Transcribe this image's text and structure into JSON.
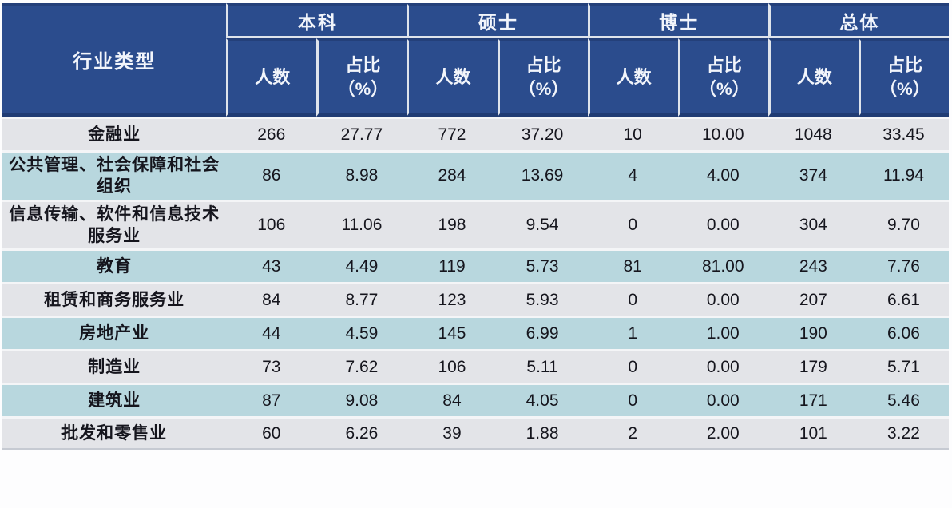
{
  "colors": {
    "header_bg": "#2b4c8d",
    "header_text": "#f2f5fb",
    "header_light_border": "#dfe4ec",
    "header_dark_border": "#203c74",
    "row_gray": "#e3e4e8",
    "row_blue": "#b8d7de",
    "row_separator": "#f4f5f7",
    "body_text": "#15151d",
    "page_bg": "#fdfdfe"
  },
  "table": {
    "corner_label": "行业类型",
    "groups": [
      "本科",
      "硕士",
      "博士",
      "总体"
    ],
    "sub_count_label": "人数",
    "sub_pct_line1": "占比",
    "sub_pct_line2": "（%）",
    "rows": [
      {
        "industry": "金融业",
        "values": [
          "266",
          "27.77",
          "772",
          "37.20",
          "10",
          "10.00",
          "1048",
          "33.45"
        ]
      },
      {
        "industry": "公共管理、社会保障和社会组织",
        "values": [
          "86",
          "8.98",
          "284",
          "13.69",
          "4",
          "4.00",
          "374",
          "11.94"
        ]
      },
      {
        "industry": "信息传输、软件和信息技术服务业",
        "values": [
          "106",
          "11.06",
          "198",
          "9.54",
          "0",
          "0.00",
          "304",
          "9.70"
        ]
      },
      {
        "industry": "教育",
        "values": [
          "43",
          "4.49",
          "119",
          "5.73",
          "81",
          "81.00",
          "243",
          "7.76"
        ]
      },
      {
        "industry": "租赁和商务服务业",
        "values": [
          "84",
          "8.77",
          "123",
          "5.93",
          "0",
          "0.00",
          "207",
          "6.61"
        ]
      },
      {
        "industry": "房地产业",
        "values": [
          "44",
          "4.59",
          "145",
          "6.99",
          "1",
          "1.00",
          "190",
          "6.06"
        ]
      },
      {
        "industry": "制造业",
        "values": [
          "73",
          "7.62",
          "106",
          "5.11",
          "0",
          "0.00",
          "179",
          "5.71"
        ]
      },
      {
        "industry": "建筑业",
        "values": [
          "87",
          "9.08",
          "84",
          "4.05",
          "0",
          "0.00",
          "171",
          "5.46"
        ]
      },
      {
        "industry": "批发和零售业",
        "values": [
          "60",
          "6.26",
          "39",
          "1.88",
          "2",
          "2.00",
          "101",
          "3.22"
        ]
      }
    ]
  },
  "chart_data": {
    "type": "table",
    "title": "",
    "row_header": "行业类型",
    "column_groups": [
      "本科",
      "硕士",
      "博士",
      "总体"
    ],
    "sub_columns_per_group": [
      "人数",
      "占比（%）"
    ],
    "rows": [
      {
        "industry": "金融业",
        "本科_人数": 266,
        "本科_占比": 27.77,
        "硕士_人数": 772,
        "硕士_占比": 37.2,
        "博士_人数": 10,
        "博士_占比": 10.0,
        "总体_人数": 1048,
        "总体_占比": 33.45
      },
      {
        "industry": "公共管理、社会保障和社会组织",
        "本科_人数": 86,
        "本科_占比": 8.98,
        "硕士_人数": 284,
        "硕士_占比": 13.69,
        "博士_人数": 4,
        "博士_占比": 4.0,
        "总体_人数": 374,
        "总体_占比": 11.94
      },
      {
        "industry": "信息传输、软件和信息技术服务业",
        "本科_人数": 106,
        "本科_占比": 11.06,
        "硕士_人数": 198,
        "硕士_占比": 9.54,
        "博士_人数": 0,
        "博士_占比": 0.0,
        "总体_人数": 304,
        "总体_占比": 9.7
      },
      {
        "industry": "教育",
        "本科_人数": 43,
        "本科_占比": 4.49,
        "硕士_人数": 119,
        "硕士_占比": 5.73,
        "博士_人数": 81,
        "博士_占比": 81.0,
        "总体_人数": 243,
        "总体_占比": 7.76
      },
      {
        "industry": "租赁和商务服务业",
        "本科_人数": 84,
        "本科_占比": 8.77,
        "硕士_人数": 123,
        "硕士_占比": 5.93,
        "博士_人数": 0,
        "博士_占比": 0.0,
        "总体_人数": 207,
        "总体_占比": 6.61
      },
      {
        "industry": "房地产业",
        "本科_人数": 44,
        "本科_占比": 4.59,
        "硕士_人数": 145,
        "硕士_占比": 6.99,
        "博士_人数": 1,
        "博士_占比": 1.0,
        "总体_人数": 190,
        "总体_占比": 6.06
      },
      {
        "industry": "制造业",
        "本科_人数": 73,
        "本科_占比": 7.62,
        "硕士_人数": 106,
        "硕士_占比": 5.11,
        "博士_人数": 0,
        "博士_占比": 0.0,
        "总体_人数": 179,
        "总体_占比": 5.71
      },
      {
        "industry": "建筑业",
        "本科_人数": 87,
        "本科_占比": 9.08,
        "硕士_人数": 84,
        "硕士_占比": 4.05,
        "博士_人数": 0,
        "博士_占比": 0.0,
        "总体_人数": 171,
        "总体_占比": 5.46
      },
      {
        "industry": "批发和零售业",
        "本科_人数": 60,
        "本科_占比": 6.26,
        "硕士_人数": 39,
        "硕士_占比": 1.88,
        "博士_人数": 2,
        "博士_占比": 2.0,
        "总体_人数": 101,
        "总体_占比": 3.22
      }
    ]
  }
}
